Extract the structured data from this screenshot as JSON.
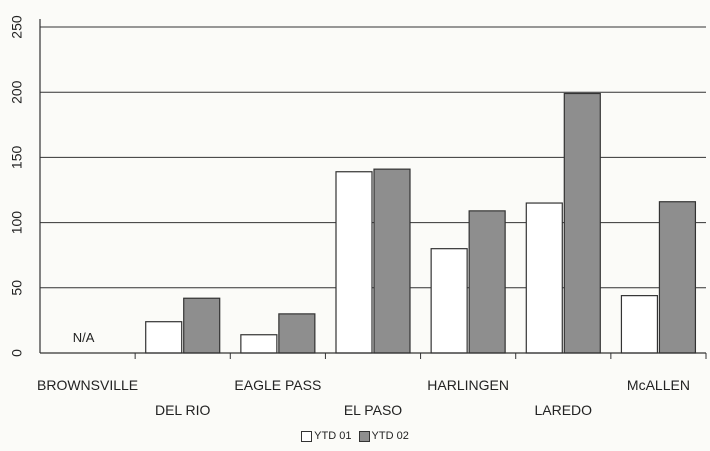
{
  "chart_data": {
    "type": "bar",
    "categories": [
      "BROWNSVILLE",
      "DEL RIO",
      "EAGLE PASS",
      "EL PASO",
      "HARLINGEN",
      "LAREDO",
      "McALLEN"
    ],
    "series": [
      {
        "name": "YTD 01",
        "values": [
          null,
          24,
          14,
          139,
          80,
          115,
          44
        ],
        "color": "#ffffff"
      },
      {
        "name": "YTD 02",
        "values": [
          null,
          42,
          30,
          141,
          109,
          199,
          116
        ],
        "color": "#8e8e8e"
      }
    ],
    "annotations": [
      {
        "category": "BROWNSVILLE",
        "text": "N/A"
      }
    ],
    "ylim": [
      0,
      250
    ],
    "yticks": [
      0,
      50,
      100,
      150,
      200,
      250
    ],
    "grid": true,
    "legend_position": "bottom-center"
  }
}
